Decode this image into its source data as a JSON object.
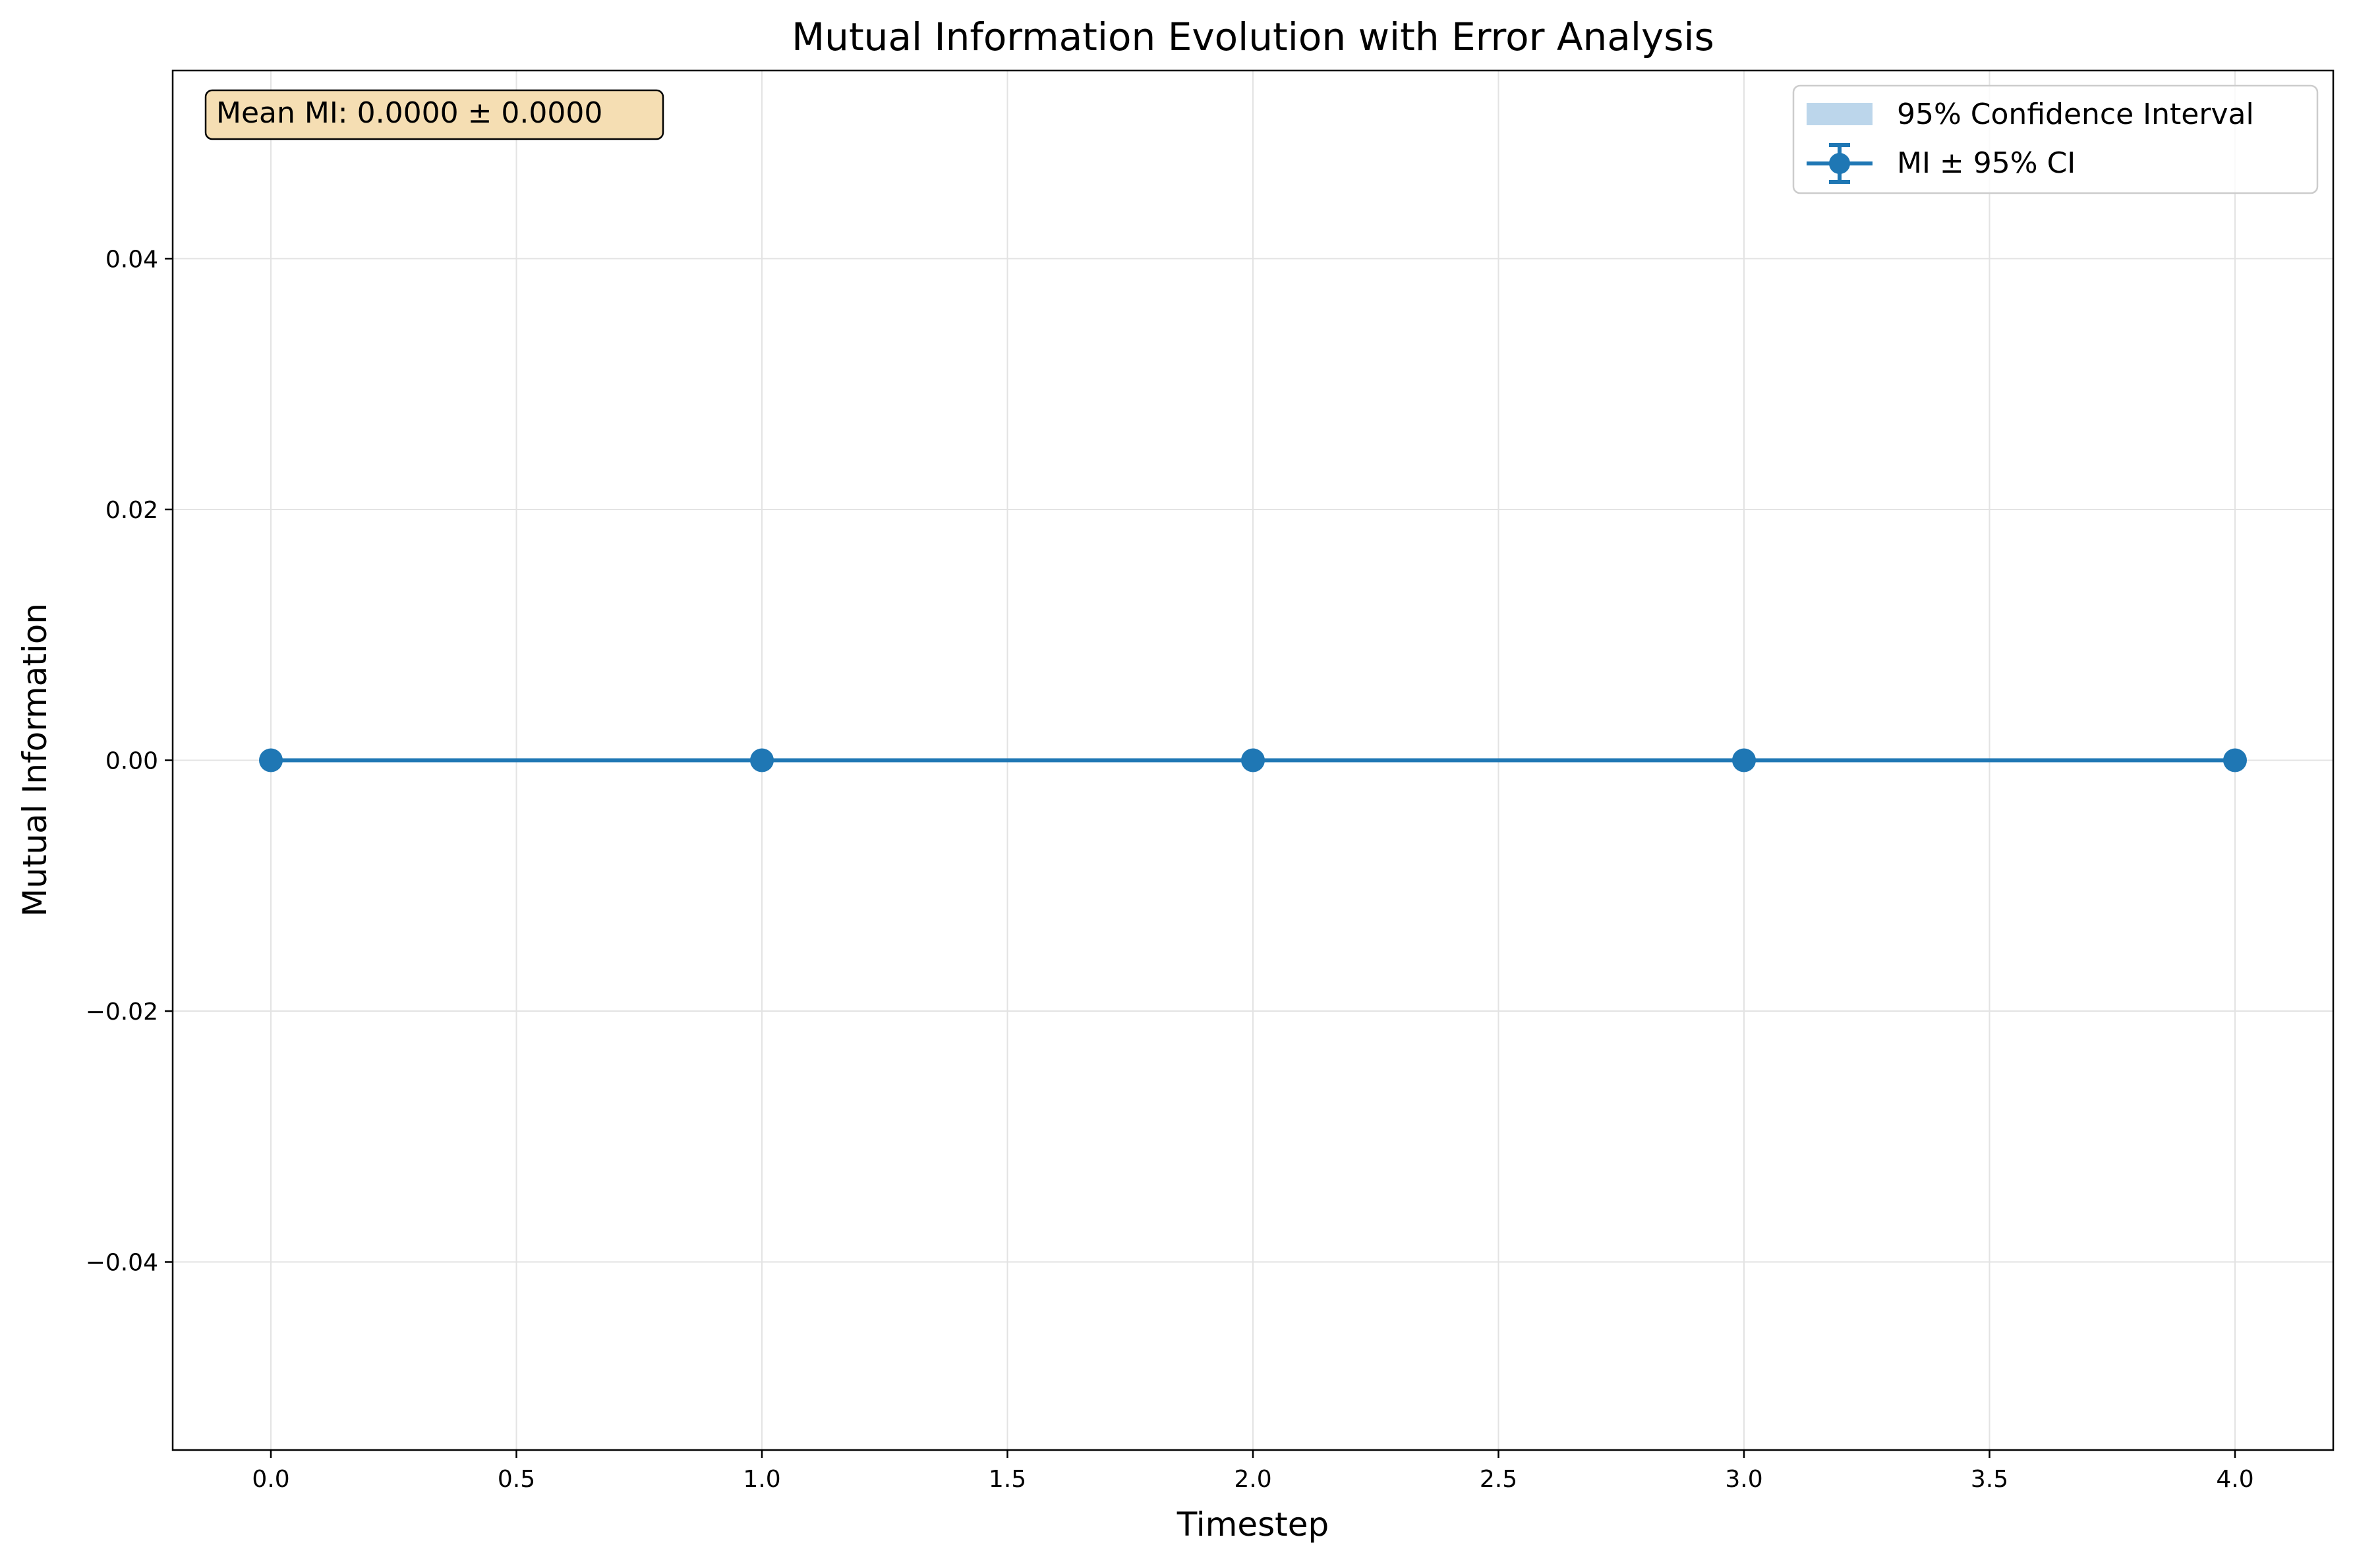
{
  "chart_data": {
    "type": "line",
    "title": "Mutual Information Evolution with Error Analysis",
    "xlabel": "Timestep",
    "ylabel": "Mutual Information",
    "xlim": [
      -0.2,
      4.2
    ],
    "ylim": [
      -0.055,
      0.055
    ],
    "x_ticks": [
      0.0,
      0.5,
      1.0,
      1.5,
      2.0,
      2.5,
      3.0,
      3.5,
      4.0
    ],
    "x_tick_labels": [
      "0.0",
      "0.5",
      "1.0",
      "1.5",
      "2.0",
      "2.5",
      "3.0",
      "3.5",
      "4.0"
    ],
    "y_ticks": [
      -0.04,
      -0.02,
      0.0,
      0.02,
      0.04
    ],
    "y_tick_labels": [
      "−0.04",
      "−0.02",
      "0.00",
      "0.02",
      "0.04"
    ],
    "grid": true,
    "legend_position": "top-right",
    "series": [
      {
        "name": "MI ± 95% CI",
        "x": [
          0,
          1,
          2,
          3,
          4
        ],
        "values": [
          0.0,
          0.0,
          0.0,
          0.0,
          0.0
        ],
        "ci_lower": [
          0.0,
          0.0,
          0.0,
          0.0,
          0.0
        ],
        "ci_upper": [
          0.0,
          0.0,
          0.0,
          0.0,
          0.0
        ],
        "color": "#1f77b4"
      }
    ],
    "confidence_band": {
      "name": "95% Confidence Interval",
      "color": "#a6c8e4"
    },
    "annotation": {
      "text": "Mean MI: 0.0000 ± 0.0000",
      "position": "top-left",
      "background": "#f5deb3"
    }
  }
}
